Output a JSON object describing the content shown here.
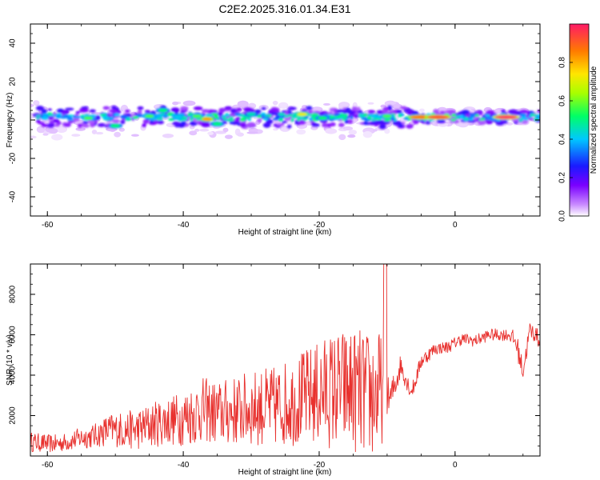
{
  "title": "C2E2.2025.316.01.34.E31",
  "colors": {
    "snr_line": "#e8312e",
    "axis": "#000000",
    "background": "#ffffff",
    "colormap": [
      "#ffffff",
      "#c98aff",
      "#7a00ff",
      "#1a1aff",
      "#00c8ff",
      "#00ff66",
      "#a8ff00",
      "#ffe600",
      "#ff7a00",
      "#ff1a66"
    ]
  },
  "chart_data": [
    {
      "type": "heatmap",
      "xlabel": "Height of straight line (km)",
      "ylabel": "Frequency (Hz)",
      "xlim": [
        -62.5,
        12.5
      ],
      "ylim": [
        -50,
        50
      ],
      "xticks": [
        -60,
        -40,
        -20,
        0
      ],
      "yticks": [
        -40,
        -20,
        0,
        20,
        40
      ],
      "xtick_labels": [
        "-60",
        "-40",
        "-20",
        "0"
      ],
      "ytick_labels": [
        "-40",
        "-20",
        "0",
        "20",
        "40"
      ],
      "band_center_hz": 1.5,
      "band_halfwidth_hz": [
        5,
        3
      ],
      "hotspots": [
        {
          "x": -54,
          "y": 1,
          "a": 0.6
        },
        {
          "x": -50,
          "y": -3,
          "a": 0.55
        },
        {
          "x": -45,
          "y": 2,
          "a": 0.6
        },
        {
          "x": -43,
          "y": 5,
          "a": 0.55
        },
        {
          "x": -38,
          "y": 2,
          "a": 0.6
        },
        {
          "x": -36.5,
          "y": 0.5,
          "a": 0.85
        },
        {
          "x": -35,
          "y": -2,
          "a": 0.55
        },
        {
          "x": -30,
          "y": 3,
          "a": 0.5
        },
        {
          "x": -22.5,
          "y": 3,
          "a": 0.75
        },
        {
          "x": -19.5,
          "y": 1,
          "a": 0.55
        },
        {
          "x": -10,
          "y": 2,
          "a": 0.6
        },
        {
          "x": -5,
          "y": 1.5,
          "a": 0.9
        },
        {
          "x": -2.5,
          "y": 1.5,
          "a": 0.95
        },
        {
          "x": 7.5,
          "y": 1.5,
          "a": 1.0
        }
      ],
      "colorbar": {
        "label": "Normalized spectral amplitude",
        "range": [
          0,
          1
        ],
        "ticks": [
          0.0,
          0.2,
          0.4,
          0.6,
          0.8
        ],
        "tick_labels": [
          "0.0",
          "0.2",
          "0.4",
          "0.6",
          "0.8"
        ]
      }
    },
    {
      "type": "line",
      "xlabel": "Height of straight line (km)",
      "ylabel": "SNR (10 * v/v)",
      "xlim": [
        -62.5,
        12.5
      ],
      "ylim": [
        0,
        9500
      ],
      "xticks": [
        -60,
        -40,
        -20,
        0
      ],
      "yticks": [
        2000,
        4000,
        6000,
        8000
      ],
      "xtick_labels": [
        "-60",
        "-40",
        "-20",
        "0"
      ],
      "ytick_labels": [
        "2000",
        "4000",
        "6000",
        "8000"
      ],
      "series": [
        {
          "name": "SNR",
          "x": [
            -62.5,
            -61,
            -59,
            -57,
            -55,
            -53,
            -51,
            -49,
            -47,
            -45,
            -43,
            -41,
            -39,
            -37,
            -35,
            -33,
            -31,
            -29,
            -27,
            -25,
            -23,
            -21,
            -19,
            -17,
            -15,
            -13,
            -11,
            -10.3,
            -9.5,
            -8,
            -6.5,
            -6,
            -5,
            -3,
            -1,
            1,
            3,
            5,
            7,
            8,
            9,
            10,
            11,
            12,
            12.5
          ],
          "base": [
            700,
            650,
            600,
            700,
            900,
            1000,
            1300,
            1300,
            1300,
            1500,
            1700,
            1800,
            2000,
            2300,
            2100,
            2200,
            2300,
            2400,
            2400,
            2600,
            2800,
            3000,
            3200,
            3300,
            3300,
            3000,
            3000,
            3200,
            2800,
            4500,
            3200,
            3500,
            4700,
            5300,
            5400,
            5800,
            5700,
            6000,
            6000,
            6000,
            5600,
            4200,
            6200,
            6000,
            5500
          ],
          "amp": [
            500,
            450,
            450,
            450,
            550,
            600,
            800,
            900,
            1000,
            1100,
            1200,
            1300,
            1500,
            1600,
            1600,
            1700,
            1800,
            1900,
            2000,
            2100,
            2300,
            2500,
            2800,
            3000,
            3100,
            3200,
            3300,
            1000,
            900,
            600,
            400,
            400,
            400,
            300,
            300,
            300,
            300,
            300,
            300,
            300,
            600,
            500,
            500,
            400,
            400
          ]
        }
      ]
    }
  ]
}
